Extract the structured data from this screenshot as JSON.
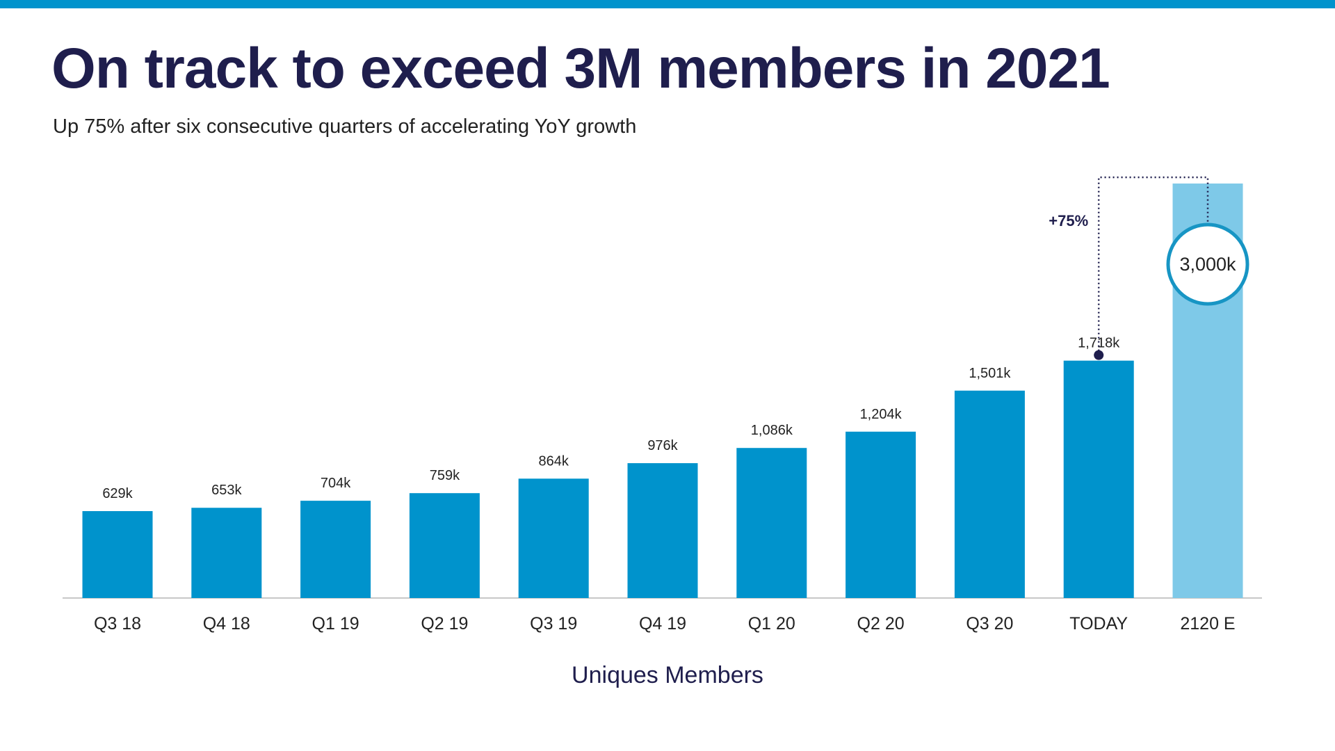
{
  "slide": {
    "title": "On track to exceed 3M members in 2021",
    "subtitle": "Up 75% after six consecutive quarters of accelerating YoY growth"
  },
  "colors": {
    "top_bar": "#0093cc",
    "bar": "#0093cc",
    "bar_estimate": "#7ec9e8",
    "title": "#1f1e4d",
    "axis": "#c8c8c8",
    "bracket": "#1f1e4d",
    "highlight_ring": "#1795c4"
  },
  "chart_data": {
    "type": "bar",
    "title": "On track to exceed 3M members in 2021",
    "subtitle": "Up 75% after six consecutive quarters of accelerating YoY growth",
    "xlabel": "Uniques Members",
    "ylabel": "",
    "categories": [
      "Q3 18",
      "Q4 18",
      "Q1 19",
      "Q2 19",
      "Q3 19",
      "Q4 19",
      "Q1 20",
      "Q2 20",
      "Q3 20",
      "TODAY",
      "2120 E"
    ],
    "values": [
      629,
      653,
      704,
      759,
      864,
      976,
      1086,
      1204,
      1501,
      1718,
      3000
    ],
    "value_labels": [
      "629k",
      "653k",
      "704k",
      "759k",
      "864k",
      "976k",
      "1,086k",
      "1,204k",
      "1,501k",
      "1,718k",
      "3,000k"
    ],
    "estimate_categories": [
      "2120 E"
    ],
    "ylim": [
      0,
      3000
    ],
    "grid": false,
    "legend": "none",
    "annotations": [
      {
        "text": "+75%",
        "from": "TODAY",
        "to": "2120 E",
        "style": "dotted bracket"
      }
    ]
  }
}
